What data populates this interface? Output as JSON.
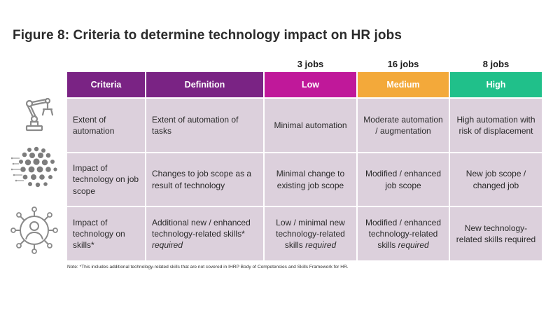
{
  "figure": {
    "title": "Figure 8: Criteria to determine technology impact on HR jobs"
  },
  "jobs": {
    "low": "3 jobs",
    "medium": "16 jobs",
    "high": "8 jobs"
  },
  "header": {
    "criteria": "Criteria",
    "definition": "Definition",
    "low": "Low",
    "medium": "Medium",
    "high": "High"
  },
  "rows": [
    {
      "criteria": "Extent of automation",
      "definition": "Extent of automation of tasks",
      "low": "Minimal automation",
      "medium": "Moderate automation / augmentation",
      "high": "High automation with risk of displacement"
    },
    {
      "criteria": "Impact of technology on job scope",
      "definition": "Changes to job scope as a result of technology",
      "low": "Minimal change to existing job scope",
      "medium": "Modified / enhanced job scope",
      "high": "New job scope / changed job"
    },
    {
      "criteria": "Impact of technology on skills*",
      "definition_main": "Additional new / enhanced technology-related skills*",
      "definition_em": "required",
      "low_main": "Low / minimal new technology-related skills",
      "low_em": "required",
      "medium_main": "Modified / enhanced technology-related skills",
      "medium_em": "required",
      "high": "New technology-related skills required"
    }
  ],
  "note": "Note: *This includes additional technology-related skills that are not covered in IHRP Body of Competencies and Skills Framework for HR.",
  "icons": [
    "robot-arm-icon",
    "technology-network-icon",
    "person-skills-icon"
  ],
  "colors": {
    "header_purple": "#7a2384",
    "low": "#c0189a",
    "medium": "#f3a93a",
    "high": "#20c08a",
    "body": "#dcd0dc"
  }
}
